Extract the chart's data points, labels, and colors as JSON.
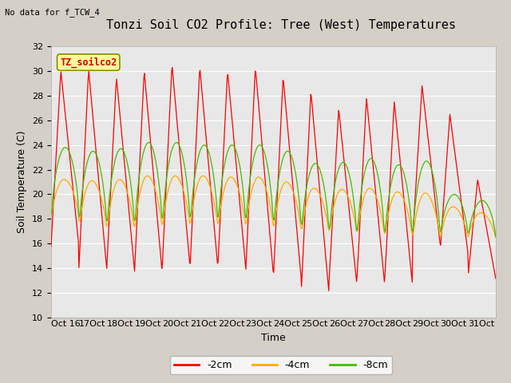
{
  "title": "Tonzi Soil CO2 Profile: Tree (West) Temperatures",
  "no_data_label": "No data for f_TCW_4",
  "box_label": "TZ_soilco2",
  "ylabel": "Soil Temperature (C)",
  "xlabel": "Time",
  "ylim": [
    10,
    32
  ],
  "yticks": [
    10,
    12,
    14,
    16,
    18,
    20,
    22,
    24,
    26,
    28,
    30,
    32
  ],
  "legend": [
    {
      "label": "-2cm",
      "color": "#ff0000"
    },
    {
      "label": "-4cm",
      "color": "#ffaa00"
    },
    {
      "label": "-8cm",
      "color": "#44bb00"
    }
  ],
  "fig_bg": "#d4d0c8",
  "plot_bg": "#e8e8e8",
  "grid_color": "#ffffff",
  "title_fontsize": 11,
  "label_fontsize": 9,
  "tick_fontsize": 8
}
